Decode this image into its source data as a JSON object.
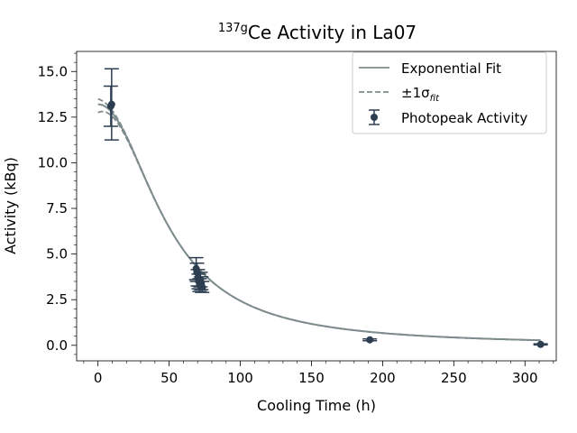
{
  "chart_data": {
    "type": "scatter",
    "title": {
      "sup": "137g",
      "text": "Ce Activity in La07"
    },
    "xlabel": "Cooling Time (h)",
    "ylabel": "Activity (kBq)",
    "xlim": [
      -15,
      322
    ],
    "ylim": [
      -0.85,
      16.1
    ],
    "xticks": [
      0,
      50,
      100,
      150,
      200,
      250,
      300
    ],
    "yticks": [
      0.0,
      2.5,
      5.0,
      7.5,
      10.0,
      12.5,
      15.0
    ],
    "ytick_labels": [
      "0.0",
      "2.5",
      "5.0",
      "7.5",
      "10.0",
      "12.5",
      "15.0"
    ],
    "grid": false,
    "legend": {
      "placement": "top-right",
      "entries": [
        {
          "label": "Exponential Fit",
          "style": "solid-line"
        },
        {
          "label": "±1σ",
          "sub": "fit",
          "style": "dashed-line"
        },
        {
          "label": "Photopeak Activity",
          "style": "errorbar-point"
        }
      ]
    },
    "fit": {
      "name": "Exponential Fit",
      "color": "#7f8c8d",
      "model": "A / (1 + (t / t0)^n)",
      "params": {
        "A": 13.2,
        "t0": 49,
        "n": 2.08
      }
    },
    "sigma_band": {
      "name": "±1σ",
      "color": "#7f8c8d",
      "upper_start": 13.5,
      "lower_start": 12.75
    },
    "points": {
      "name": "Photopeak Activity",
      "color": "#2c3e50",
      "data": [
        {
          "x": 9.0,
          "y": 13.1,
          "err": 1.1
        },
        {
          "x": 9.6,
          "y": 13.2,
          "err": 1.95
        },
        {
          "x": 69.0,
          "y": 4.2,
          "err": 0.6
        },
        {
          "x": 69.6,
          "y": 4.0,
          "err": 0.5
        },
        {
          "x": 70.2,
          "y": 3.7,
          "err": 0.45
        },
        {
          "x": 70.8,
          "y": 3.5,
          "err": 0.4
        },
        {
          "x": 71.4,
          "y": 3.3,
          "err": 0.35
        },
        {
          "x": 72.0,
          "y": 3.6,
          "err": 0.4
        },
        {
          "x": 72.6,
          "y": 3.4,
          "err": 0.35
        },
        {
          "x": 73.2,
          "y": 3.2,
          "err": 0.3
        },
        {
          "x": 191.0,
          "y": 0.3,
          "err": 0.05
        },
        {
          "x": 311.0,
          "y": 0.05,
          "err": 0.03
        }
      ]
    }
  }
}
